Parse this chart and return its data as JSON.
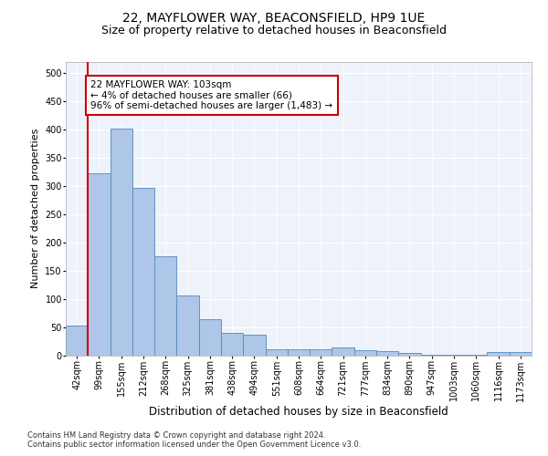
{
  "title": "22, MAYFLOWER WAY, BEACONSFIELD, HP9 1UE",
  "subtitle": "Size of property relative to detached houses in Beaconsfield",
  "xlabel": "Distribution of detached houses by size in Beaconsfield",
  "ylabel": "Number of detached properties",
  "footnote1": "Contains HM Land Registry data © Crown copyright and database right 2024.",
  "footnote2": "Contains public sector information licensed under the Open Government Licence v3.0.",
  "categories": [
    "42sqm",
    "99sqm",
    "155sqm",
    "212sqm",
    "268sqm",
    "325sqm",
    "381sqm",
    "438sqm",
    "494sqm",
    "551sqm",
    "608sqm",
    "664sqm",
    "721sqm",
    "777sqm",
    "834sqm",
    "890sqm",
    "947sqm",
    "1003sqm",
    "1060sqm",
    "1116sqm",
    "1173sqm"
  ],
  "values": [
    53,
    322,
    401,
    297,
    176,
    107,
    65,
    40,
    37,
    12,
    11,
    11,
    15,
    10,
    8,
    5,
    2,
    1,
    1,
    6,
    6
  ],
  "bar_color": "#aec6e8",
  "bar_edge_color": "#5588bb",
  "vline_color": "#cc0000",
  "annotation_text": "22 MAYFLOWER WAY: 103sqm\n← 4% of detached houses are smaller (66)\n96% of semi-detached houses are larger (1,483) →",
  "annotation_box_color": "#ffffff",
  "annotation_box_edge": "#cc0000",
  "ylim": [
    0,
    520
  ],
  "yticks": [
    0,
    50,
    100,
    150,
    200,
    250,
    300,
    350,
    400,
    450,
    500
  ],
  "background_color": "#eef2fa",
  "title_fontsize": 10,
  "subtitle_fontsize": 9,
  "ylabel_fontsize": 8,
  "xlabel_fontsize": 8.5,
  "tick_fontsize": 7,
  "footnote_fontsize": 6,
  "annotation_fontsize": 7.5
}
